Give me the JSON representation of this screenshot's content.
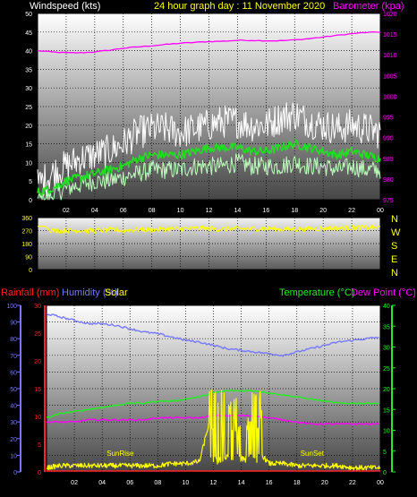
{
  "top_header": {
    "wind_label": "Windspeed (kts)",
    "title": "24 hour graph day : 11 November 2020",
    "baro_label": "Barometer (kpa)"
  },
  "colors": {
    "background": "#000000",
    "wind_axis": "#ffffff",
    "title": "#ffff00",
    "barometer": "#ff00ff",
    "wind_gust": "#ffffff",
    "wind_avg": "#22dd22",
    "wind_low": "#bbffbb",
    "direction": "#ffff00",
    "rain": "#ff2222",
    "humidity": "#7777ff",
    "solar": "#ffff00",
    "temperature": "#22ee22",
    "dewpoint": "#ff00ff",
    "grid": "#000000"
  },
  "x_ticks": [
    "02",
    "04",
    "06",
    "08",
    "10",
    "12",
    "14",
    "16",
    "18",
    "20",
    "22",
    "00"
  ],
  "direction_panel": {
    "left_ticks": [
      "360",
      "270",
      "180",
      "90",
      "0"
    ],
    "right_labels": [
      "N",
      "W",
      "S",
      "E",
      "N"
    ]
  },
  "bottom_header": {
    "rain_label": "Rainfall (mm)",
    "humidity_label": "Humidity (%)",
    "solar_label": "Solar",
    "temp_label": "Temperature (°C)",
    "dew_label": "Dew Point (°C)"
  },
  "chart_data": [
    {
      "type": "line",
      "title": "24 hour graph day : 11 November 2020",
      "ylabel": "Windspeed (kts)",
      "y2label": "Barometer (kpa)",
      "ylim": [
        0,
        50
      ],
      "y2lim": [
        975,
        1020
      ],
      "y_ticks": [
        "50",
        "45",
        "40",
        "35",
        "30",
        "25",
        "20",
        "15",
        "10",
        "5",
        "0"
      ],
      "y2_ticks": [
        "1020",
        "1015",
        "1010",
        "1005",
        "1000",
        "995",
        "990",
        "985",
        "980",
        "975"
      ],
      "xlim": [
        0,
        24
      ],
      "x": [
        0,
        1,
        2,
        3,
        4,
        5,
        6,
        7,
        8,
        9,
        10,
        11,
        12,
        13,
        14,
        15,
        16,
        17,
        18,
        19,
        20,
        21,
        22,
        23,
        24
      ],
      "series": [
        {
          "name": "gust",
          "values": [
            4,
            7,
            9,
            11,
            12,
            13,
            15,
            18,
            19,
            19,
            18,
            19,
            20,
            21,
            21,
            20,
            20,
            22,
            23,
            21,
            20,
            19,
            20,
            19,
            18
          ]
        },
        {
          "name": "average",
          "values": [
            2,
            3,
            5,
            6,
            7,
            8,
            9,
            11,
            12,
            12,
            12,
            13,
            14,
            14,
            14,
            13,
            13,
            14,
            15,
            14,
            13,
            12,
            13,
            12,
            11
          ]
        },
        {
          "name": "low",
          "values": [
            0,
            1,
            3,
            4,
            5,
            5,
            6,
            7,
            8,
            8,
            8,
            9,
            9,
            9,
            10,
            9,
            9,
            9,
            10,
            9,
            9,
            8,
            9,
            8,
            8
          ]
        },
        {
          "name": "barometer",
          "values": [
            1011.0,
            1010.7,
            1010.5,
            1010.5,
            1010.7,
            1011.1,
            1011.6,
            1011.9,
            1012.2,
            1012.5,
            1012.8,
            1013.0,
            1013.2,
            1013.3,
            1013.5,
            1013.5,
            1013.4,
            1013.4,
            1013.6,
            1013.9,
            1014.3,
            1014.7,
            1015.1,
            1015.4,
            1015.5
          ]
        }
      ]
    },
    {
      "type": "line",
      "ylabel": "Wind direction (degrees)",
      "ylim": [
        0,
        360
      ],
      "y_ticks": [
        "360",
        "270",
        "180",
        "90",
        "0"
      ],
      "xlim": [
        0,
        24
      ],
      "x": [
        0,
        0.5,
        1,
        2,
        3,
        4,
        5,
        6,
        7,
        8,
        9,
        10,
        11,
        12,
        13,
        14,
        15,
        16,
        17,
        18,
        19,
        20,
        21,
        22,
        23,
        24
      ],
      "series": [
        {
          "name": "direction",
          "values": [
            300,
            300,
            270,
            270,
            272,
            268,
            275,
            270,
            278,
            275,
            280,
            282,
            285,
            285,
            280,
            283,
            282,
            285,
            280,
            280,
            282,
            285,
            288,
            290,
            290,
            292
          ]
        }
      ]
    },
    {
      "type": "line",
      "xlim": [
        0,
        24
      ],
      "left_axis": {
        "label": "Humidity (%)",
        "ylim": [
          0,
          100
        ],
        "ticks": [
          "100",
          "90",
          "80",
          "70",
          "60",
          "50",
          "40",
          "30",
          "20",
          "10",
          "0"
        ]
      },
      "rain_axis": {
        "label": "Rainfall (mm)",
        "ylim": [
          0,
          30
        ],
        "ticks": [
          "30",
          "25",
          "20",
          "15",
          "10",
          "5",
          "0"
        ]
      },
      "right_axis": {
        "label": "Temperature (°C)",
        "ylim": [
          0,
          40
        ],
        "ticks": [
          "40",
          "35",
          "30",
          "25",
          "20",
          "15",
          "10",
          "5",
          "0"
        ]
      },
      "x": [
        0,
        1,
        2,
        3,
        4,
        5,
        6,
        7,
        8,
        9,
        10,
        11,
        12,
        13,
        14,
        15,
        16,
        17,
        18,
        19,
        20,
        21,
        22,
        23,
        24
      ],
      "series": [
        {
          "name": "humidity",
          "axis": "left",
          "values": [
            95,
            93,
            91,
            89,
            89,
            88,
            86,
            84,
            83,
            81,
            79,
            78,
            76,
            74,
            73,
            72,
            71,
            70,
            72,
            74,
            76,
            78,
            79,
            80,
            81
          ]
        },
        {
          "name": "temperature",
          "axis": "right",
          "values": [
            13,
            14,
            14.5,
            15,
            15.5,
            16,
            16.5,
            16.5,
            17,
            17,
            17.5,
            18,
            19,
            19.5,
            19.5,
            19.5,
            19,
            18.5,
            18,
            17.5,
            17,
            16.5,
            16.5,
            16.5,
            16.5
          ]
        },
        {
          "name": "dewpoint",
          "axis": "right",
          "values": [
            12,
            12,
            12,
            12.5,
            12.5,
            12.5,
            12.5,
            12.5,
            13,
            13,
            13,
            13,
            13.5,
            13.5,
            13.5,
            13.5,
            13,
            12.5,
            12,
            11.5,
            11.5,
            11.5,
            11.5,
            11.5,
            11.5
          ]
        },
        {
          "name": "solar",
          "axis": "right",
          "values": [
            1,
            1.5,
            1.5,
            1.5,
            1.5,
            1.5,
            1.5,
            1.5,
            1.5,
            2,
            2,
            2.5,
            16,
            2,
            17,
            6,
            2,
            2,
            1.5,
            1.5,
            1.5,
            1.5,
            1,
            1,
            1
          ]
        },
        {
          "name": "rainfall",
          "axis": "rain",
          "values": [
            0,
            0,
            0,
            0,
            0,
            0,
            0,
            0,
            0,
            0,
            0,
            0,
            0,
            0,
            0,
            0,
            0,
            0,
            0,
            0,
            0,
            0,
            0,
            0,
            0
          ]
        }
      ],
      "annotations": [
        {
          "text": "SunRise",
          "x": 5.3
        },
        {
          "text": "SunSet",
          "x": 19.1
        }
      ]
    }
  ]
}
